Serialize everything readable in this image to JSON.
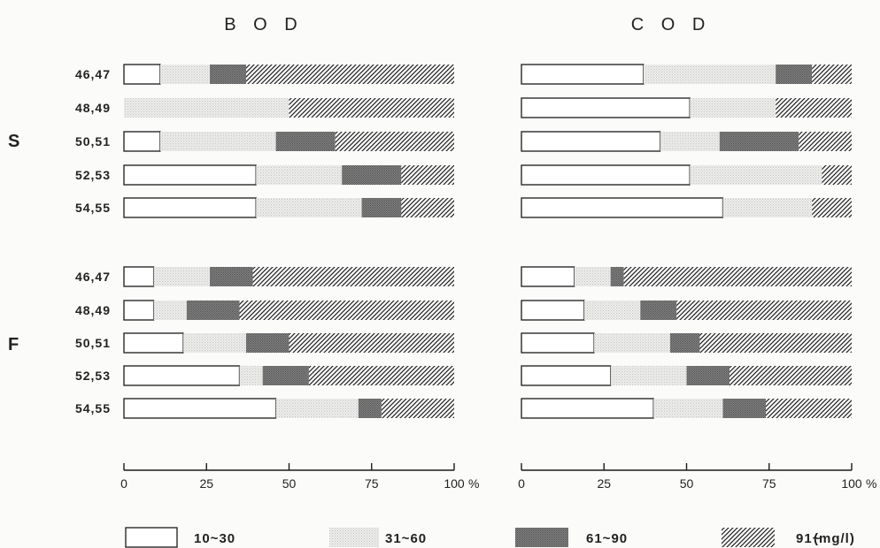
{
  "chart_data": {
    "type": "bar",
    "stacked": true,
    "orientation": "horizontal",
    "percent_scale": true,
    "xlim": [
      0,
      100
    ],
    "x_ticks": [
      "0",
      "25",
      "50",
      "75",
      "100"
    ],
    "x_unit": "%",
    "groups": [
      {
        "label": "S",
        "rows": [
          "46,47",
          "48,49",
          "50,51",
          "52,53",
          "54,55"
        ]
      },
      {
        "label": "F",
        "rows": [
          "46,47",
          "48,49",
          "50,51",
          "52,53",
          "54,55"
        ]
      }
    ],
    "legend": {
      "placement": "bottom",
      "entries": [
        {
          "label": "10~30",
          "pattern": "white"
        },
        {
          "label": "31~60",
          "pattern": "dotted-light"
        },
        {
          "label": "61~90",
          "pattern": "dense-dark"
        },
        {
          "label": "91~",
          "pattern": "diagonal-hatch"
        }
      ],
      "unit_label": "(mg/l)"
    },
    "panels": [
      {
        "title": "B O D",
        "rows": [
          {
            "group": "S",
            "label": "46,47",
            "values": [
              11,
              15,
              11,
              63
            ]
          },
          {
            "group": "S",
            "label": "48,49",
            "values": [
              0,
              50,
              0,
              50
            ]
          },
          {
            "group": "S",
            "label": "50,51",
            "values": [
              11,
              35,
              18,
              36
            ]
          },
          {
            "group": "S",
            "label": "52,53",
            "values": [
              40,
              26,
              18,
              16
            ]
          },
          {
            "group": "S",
            "label": "54,55",
            "values": [
              40,
              32,
              12,
              16
            ]
          },
          {
            "group": "F",
            "label": "46,47",
            "values": [
              9,
              17,
              13,
              61
            ]
          },
          {
            "group": "F",
            "label": "48,49",
            "values": [
              9,
              10,
              16,
              65
            ]
          },
          {
            "group": "F",
            "label": "50,51",
            "values": [
              18,
              19,
              13,
              50
            ]
          },
          {
            "group": "F",
            "label": "52,53",
            "values": [
              35,
              7,
              14,
              44
            ]
          },
          {
            "group": "F",
            "label": "54,55",
            "values": [
              46,
              25,
              7,
              22
            ]
          }
        ]
      },
      {
        "title": "C O D",
        "rows": [
          {
            "group": "S",
            "label": "46,47",
            "values": [
              37,
              40,
              11,
              12
            ]
          },
          {
            "group": "S",
            "label": "48,49",
            "values": [
              51,
              26,
              0,
              23
            ]
          },
          {
            "group": "S",
            "label": "50,51",
            "values": [
              42,
              18,
              24,
              16
            ]
          },
          {
            "group": "S",
            "label": "52,53",
            "values": [
              51,
              40,
              0,
              9
            ]
          },
          {
            "group": "S",
            "label": "54,55",
            "values": [
              61,
              27,
              0,
              12
            ]
          },
          {
            "group": "F",
            "label": "46,47",
            "values": [
              16,
              11,
              4,
              69
            ]
          },
          {
            "group": "F",
            "label": "48,49",
            "values": [
              19,
              17,
              11,
              53
            ]
          },
          {
            "group": "F",
            "label": "50,51",
            "values": [
              22,
              23,
              9,
              46
            ]
          },
          {
            "group": "F",
            "label": "52,53",
            "values": [
              27,
              23,
              13,
              37
            ]
          },
          {
            "group": "F",
            "label": "54,55",
            "values": [
              40,
              21,
              13,
              26
            ]
          }
        ]
      }
    ]
  }
}
